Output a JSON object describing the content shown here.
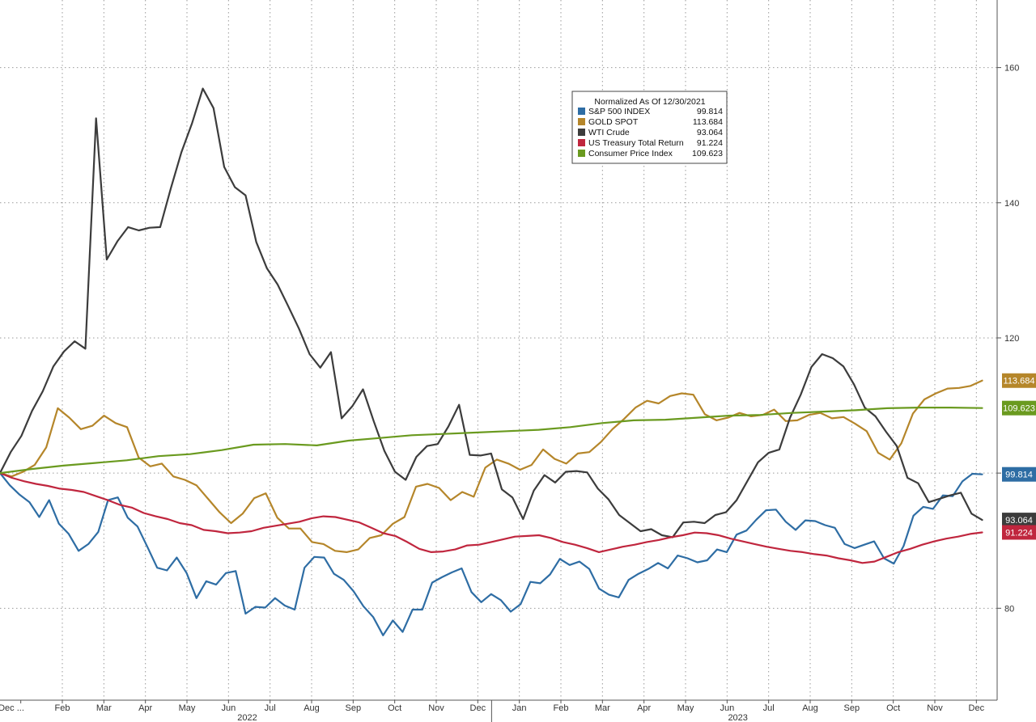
{
  "chart_data": {
    "type": "line",
    "x_tick_labels": [
      "Dec ...",
      "Feb",
      "Mar",
      "Apr",
      "May",
      "Jun",
      "Jul",
      "Aug",
      "Sep",
      "Oct",
      "Nov",
      "Dec",
      "Jan",
      "Feb",
      "Mar",
      "Apr",
      "May",
      "Jun",
      "Jul",
      "Aug",
      "Sep",
      "Oct",
      "Nov",
      "Dec"
    ],
    "year_labels": [
      "2022",
      "2023"
    ],
    "y_ticks": [
      80,
      100,
      120,
      140,
      160
    ],
    "y_tick_labels": [
      "80",
      "",
      "120",
      "140",
      "160"
    ],
    "ylim": [
      66.4,
      170
    ],
    "xlim": [
      0,
      104
    ],
    "grid": true,
    "legend": {
      "title": "Normalized As Of 12/30/2021",
      "placement": "top-center"
    },
    "series": [
      {
        "name": "S&P 500 INDEX",
        "last_label": "99.814",
        "color": "#2e6da4",
        "values": [
          100,
          98.2,
          96.8,
          95.7,
          93.5,
          96,
          92.5,
          91,
          88.5,
          89.5,
          91.3,
          96,
          96.4,
          93.4,
          92.1,
          89.1,
          86,
          85.6,
          87.5,
          85.2,
          81.5,
          84,
          83.5,
          85.2,
          85.5,
          79.2,
          80.2,
          80.1,
          81.5,
          80.4,
          79.8,
          86,
          87.6,
          87.5,
          85.1,
          84.2,
          82.5,
          80.3,
          78.7,
          76,
          78.2,
          76.5,
          79.8,
          79.8,
          83.8,
          84.6,
          85.3,
          85.9,
          82.4,
          80.9,
          82.1,
          81.2,
          79.5,
          80.6,
          83.9,
          83.7,
          85,
          87.3,
          86.4,
          86.9,
          85.8,
          82.9,
          82,
          81.6,
          84.2,
          85.1,
          85.8,
          86.7,
          85.9,
          87.8,
          87.4,
          86.8,
          87.1,
          88.7,
          88.3,
          90.9,
          91.5,
          93.1,
          94.5,
          94.6,
          92.8,
          91.6,
          93,
          92.9,
          92.3,
          91.9,
          89.5,
          88.9,
          89.4,
          89.9,
          87.4,
          86.6,
          89.2,
          93.7,
          95,
          94.7,
          96.7,
          96.6,
          98.8,
          99.9,
          99.814
        ]
      },
      {
        "name": "GOLD SPOT",
        "last_label": "113.684",
        "color": "#b5862a",
        "values": [
          100,
          99.5,
          100.2,
          101.2,
          103.8,
          109.6,
          108.2,
          106.5,
          107,
          108.5,
          107.4,
          106.8,
          102.3,
          101,
          101.4,
          99.5,
          99,
          98.2,
          96.2,
          94.2,
          92.6,
          94,
          96.3,
          97,
          93.4,
          91.8,
          91.8,
          89.8,
          89.5,
          88.5,
          88.3,
          88.7,
          90.4,
          90.8,
          92.5,
          93.5,
          98,
          98.4,
          97.8,
          96,
          97.2,
          96.5,
          100.8,
          102,
          101.4,
          100.5,
          101.2,
          103.5,
          102.1,
          101.4,
          102.9,
          103.1,
          104.6,
          106.5,
          108,
          109.7,
          110.7,
          110.3,
          111.4,
          111.8,
          111.6,
          108.7,
          107.8,
          108.2,
          108.9,
          108.4,
          108.6,
          109.4,
          107.7,
          107.8,
          108.6,
          108.9,
          108.1,
          108.3,
          107.3,
          106.2,
          103,
          102,
          104.4,
          108.8,
          110.9,
          111.8,
          112.5,
          112.6,
          112.9,
          113.684
        ]
      },
      {
        "name": "WTI Crude",
        "last_label": "93.064",
        "color": "#3c3c3c",
        "values": [
          100,
          103.1,
          105.5,
          109.2,
          112.1,
          115.8,
          118,
          119.5,
          118.4,
          152.5,
          131.6,
          134.3,
          136.4,
          135.9,
          136.3,
          136.4,
          142.1,
          147.5,
          151.8,
          156.9,
          154,
          145.3,
          142.3,
          141.1,
          134.2,
          130.3,
          127.9,
          124.7,
          121.4,
          117.6,
          115.6,
          117.9,
          108.1,
          109.9,
          112.4,
          107.7,
          103.3,
          100.2,
          99,
          102.4,
          104,
          104.3,
          106.9,
          110.1,
          102.7,
          102.6,
          102.9,
          97.6,
          96.4,
          93.2,
          97.4,
          99.7,
          98.6,
          100.2,
          100.3,
          100.1,
          97.7,
          96.1,
          93.8,
          92.6,
          91.4,
          91.7,
          90.8,
          90.5,
          92.7,
          92.8,
          92.6,
          93.8,
          94.2,
          96,
          98.8,
          101.6,
          103,
          103.5,
          108.2,
          111.6,
          115.7,
          117.6,
          117,
          115.8,
          113.1,
          109.7,
          108.4,
          106.1,
          104,
          99.3,
          98.5,
          95.7,
          96.2,
          96.7,
          97.1,
          94,
          93.064
        ]
      },
      {
        "name": "US Treasury Total Return",
        "last_label": "91.224",
        "color": "#c0263e",
        "values": [
          100,
          99.3,
          98.8,
          98.4,
          98.1,
          97.7,
          97.5,
          97.2,
          96.6,
          96,
          95.3,
          94.9,
          94.1,
          93.6,
          93.2,
          92.6,
          92.3,
          91.6,
          91.4,
          91.1,
          91.2,
          91.4,
          91.9,
          92.2,
          92.5,
          92.8,
          93.3,
          93.6,
          93.5,
          93.1,
          92.7,
          91.9,
          91.1,
          90.7,
          89.8,
          88.8,
          88.3,
          88.4,
          88.7,
          89.3,
          89.4,
          89.8,
          90.2,
          90.6,
          90.7,
          90.8,
          90.4,
          89.8,
          89.4,
          88.9,
          88.3,
          88.7,
          89.1,
          89.4,
          89.8,
          90.1,
          90.5,
          90.8,
          91.2,
          91.1,
          90.8,
          90.3,
          89.9,
          89.5,
          89.1,
          88.8,
          88.5,
          88.3,
          88,
          87.8,
          87.4,
          87.1,
          86.7,
          86.9,
          87.6,
          88.3,
          88.8,
          89.4,
          89.9,
          90.3,
          90.6,
          91,
          91.224
        ]
      },
      {
        "name": "Consumer Price Index",
        "last_label": "109.623",
        "color": "#6a9a1f",
        "values": [
          100,
          100.6,
          101.1,
          101.5,
          101.9,
          102.5,
          102.8,
          103.4,
          104.2,
          104.3,
          104.1,
          104.8,
          105.2,
          105.6,
          105.8,
          106,
          106.2,
          106.4,
          106.8,
          107.4,
          107.8,
          107.9,
          108.2,
          108.5,
          108.6,
          108.9,
          109.1,
          109.3,
          109.6,
          109.7,
          109.7,
          109.623
        ]
      }
    ]
  }
}
